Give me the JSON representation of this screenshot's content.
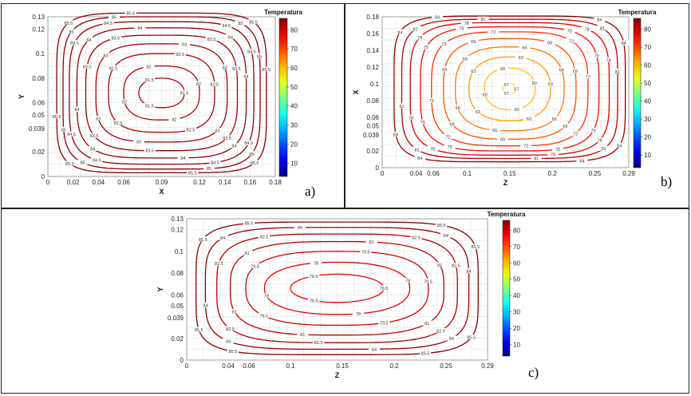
{
  "chart_data": [
    {
      "type": "contour",
      "panel_label": "a)",
      "xlabel": "X",
      "ylabel": "Y",
      "colorbar_title": "Temperatura",
      "colorbar_ticks": [
        "10",
        "20",
        "30",
        "40",
        "50",
        "60",
        "70",
        "80"
      ],
      "colorbar_range": [
        3,
        86
      ],
      "x_ticks": [
        0,
        0.02,
        0.04,
        0.06,
        0.09,
        0.12,
        0.14,
        0.16,
        0.18
      ],
      "y_ticks": [
        0,
        0.02,
        0.039,
        0.05,
        0.06,
        0.08,
        0.1,
        0.12,
        0.13
      ],
      "xlim": [
        0,
        0.18
      ],
      "ylim": [
        0,
        0.13
      ],
      "grid": true,
      "center": [
        0.09,
        0.068
      ],
      "levels": [
        {
          "value": 81.5,
          "rx": 0.018,
          "ry": 0.012,
          "shape": 2.2,
          "label": "81.5"
        },
        {
          "value": 82,
          "rx": 0.03,
          "ry": 0.022,
          "shape": 2.6,
          "label": "82"
        },
        {
          "value": 82.5,
          "rx": 0.042,
          "ry": 0.032,
          "shape": 3.0,
          "label": "82.5"
        },
        {
          "value": 83,
          "rx": 0.052,
          "ry": 0.04,
          "shape": 3.3,
          "label": "83"
        },
        {
          "value": 83.5,
          "rx": 0.06,
          "ry": 0.047,
          "shape": 3.6,
          "label": "83.5"
        },
        {
          "value": 84,
          "rx": 0.067,
          "ry": 0.053,
          "shape": 3.9,
          "label": "84"
        },
        {
          "value": 84.5,
          "rx": 0.073,
          "ry": 0.058,
          "shape": 4.3,
          "label": "84.5"
        },
        {
          "value": 85,
          "rx": 0.078,
          "ry": 0.062,
          "shape": 4.8,
          "label": "85"
        },
        {
          "value": 85.5,
          "rx": 0.083,
          "ry": 0.065,
          "shape": 5.5,
          "label": "85.5"
        }
      ]
    },
    {
      "type": "contour",
      "panel_label": "b)",
      "xlabel": "Z",
      "ylabel": "X",
      "colorbar_title": "Temperatura",
      "colorbar_ticks": [
        "10",
        "20",
        "30",
        "40",
        "50",
        "60",
        "70",
        "80"
      ],
      "colorbar_range": [
        3,
        86
      ],
      "x_ticks": [
        0,
        0.04,
        0.06,
        0.1,
        0.15,
        0.2,
        0.25,
        0.29
      ],
      "y_ticks": [
        0,
        0.02,
        0.039,
        0.05,
        0.06,
        0.08,
        0.1,
        0.12,
        0.14,
        0.16,
        0.18
      ],
      "xlim": [
        0,
        0.29
      ],
      "ylim": [
        0,
        0.18
      ],
      "grid": true,
      "center": [
        0.15,
        0.094
      ],
      "levels": [
        {
          "value": 57,
          "rx": 0.008,
          "ry": 0.006,
          "shape": 2.0,
          "label": "57"
        },
        {
          "value": 60,
          "rx": 0.03,
          "ry": 0.025,
          "shape": 2.2,
          "label": "60"
        },
        {
          "value": 63,
          "rx": 0.048,
          "ry": 0.038,
          "shape": 2.4,
          "label": "63"
        },
        {
          "value": 66,
          "rx": 0.064,
          "ry": 0.05,
          "shape": 2.7,
          "label": "66"
        },
        {
          "value": 69,
          "rx": 0.078,
          "ry": 0.06,
          "shape": 3.0,
          "label": "69"
        },
        {
          "value": 72,
          "rx": 0.092,
          "ry": 0.068,
          "shape": 3.4,
          "label": "72"
        },
        {
          "value": 75,
          "rx": 0.105,
          "ry": 0.074,
          "shape": 3.8,
          "label": "75"
        },
        {
          "value": 78,
          "rx": 0.117,
          "ry": 0.079,
          "shape": 4.2,
          "label": "78"
        },
        {
          "value": 81,
          "rx": 0.127,
          "ry": 0.083,
          "shape": 4.8,
          "label": "81"
        },
        {
          "value": 84,
          "rx": 0.136,
          "ry": 0.087,
          "shape": 5.5,
          "label": "84"
        }
      ]
    },
    {
      "type": "contour",
      "panel_label": "c)",
      "xlabel": "Z",
      "ylabel": "Y",
      "colorbar_title": "Temperatura",
      "colorbar_ticks": [
        "10",
        "20",
        "30",
        "40",
        "50",
        "60",
        "70",
        "80"
      ],
      "colorbar_range": [
        3,
        86
      ],
      "x_ticks": [
        0,
        0.04,
        0.06,
        0.1,
        0.15,
        0.2,
        0.25,
        0.29
      ],
      "y_ticks": [
        0,
        0.02,
        0.039,
        0.05,
        0.06,
        0.08,
        0.1,
        0.12,
        0.13
      ],
      "xlim": [
        0,
        0.29
      ],
      "ylim": [
        0,
        0.13
      ],
      "grid": true,
      "center": [
        0.145,
        0.066
      ],
      "levels": [
        {
          "value": 76.5,
          "rx": 0.045,
          "ry": 0.013,
          "shape": 2.0,
          "label": "76.5"
        },
        {
          "value": 78,
          "rx": 0.07,
          "ry": 0.024,
          "shape": 2.3,
          "label": "78"
        },
        {
          "value": 79.5,
          "rx": 0.088,
          "ry": 0.034,
          "shape": 2.7,
          "label": "79.5"
        },
        {
          "value": 81,
          "rx": 0.103,
          "ry": 0.043,
          "shape": 3.1,
          "label": "81"
        },
        {
          "value": 82.5,
          "rx": 0.116,
          "ry": 0.05,
          "shape": 3.6,
          "label": "82.5"
        },
        {
          "value": 84,
          "rx": 0.127,
          "ry": 0.056,
          "shape": 4.2,
          "label": "84"
        },
        {
          "value": 85.5,
          "rx": 0.136,
          "ry": 0.061,
          "shape": 5.0,
          "label": "85.5"
        }
      ]
    }
  ]
}
